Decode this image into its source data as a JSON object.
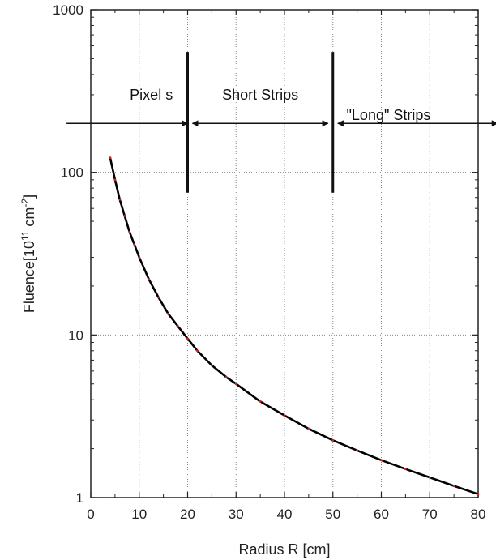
{
  "chart_data": {
    "type": "line",
    "title": "",
    "xlabel": "Radius R [cm]",
    "ylabel": {
      "prefix": "Fluence[10",
      "sup1": "11",
      "mid": " cm",
      "sup2": "-2",
      "suffix": "]"
    },
    "xlim": [
      0,
      80
    ],
    "ylim": [
      1,
      1000
    ],
    "yscale": "log",
    "grid": true,
    "x_ticks": [
      0,
      10,
      20,
      30,
      40,
      50,
      60,
      70,
      80
    ],
    "x_tick_labels": [
      "0",
      "10",
      "20",
      "30",
      "40",
      "50",
      "60",
      "70",
      "80"
    ],
    "y_ticks": [
      1,
      10,
      100,
      1000
    ],
    "y_tick_labels": [
      "1",
      "10",
      "100",
      "1000"
    ],
    "series": [
      {
        "name": "",
        "color": "#000000",
        "marker_color": "#cc2222",
        "x": [
          4,
          5,
          6,
          7,
          8,
          9,
          10,
          12,
          14,
          16,
          18,
          20,
          22,
          25,
          28,
          30,
          35,
          40,
          45,
          50,
          55,
          60,
          65,
          70,
          75,
          80
        ],
        "y": [
          123,
          90,
          68,
          54,
          43,
          36,
          30,
          22,
          17,
          13.5,
          11.3,
          9.5,
          8.0,
          6.5,
          5.5,
          5.0,
          3.9,
          3.2,
          2.65,
          2.25,
          1.95,
          1.7,
          1.5,
          1.33,
          1.18,
          1.05
        ]
      }
    ],
    "boundaries": [
      {
        "x": 20,
        "y_from": 75,
        "y_to": 550
      },
      {
        "x": 50,
        "y_from": 75,
        "y_to": 550
      }
    ],
    "regions": [
      {
        "label": "Pixel s",
        "label_x": 12.5,
        "label_y": 280,
        "arrow_from": 20,
        "arrow_to": -5,
        "arrow_y": 200,
        "head_start": true,
        "head_end": false
      },
      {
        "label": "Short Strips",
        "label_x": 35,
        "label_y": 280,
        "arrow_from": 21,
        "arrow_to": 49,
        "arrow_y": 200,
        "head_start": true,
        "head_end": true
      },
      {
        "label": "\"Long\" Strips",
        "label_x": 61.5,
        "label_y": 210,
        "arrow_from": 51,
        "arrow_to": 84,
        "arrow_y": 200,
        "head_start": true,
        "head_end": true
      }
    ]
  }
}
